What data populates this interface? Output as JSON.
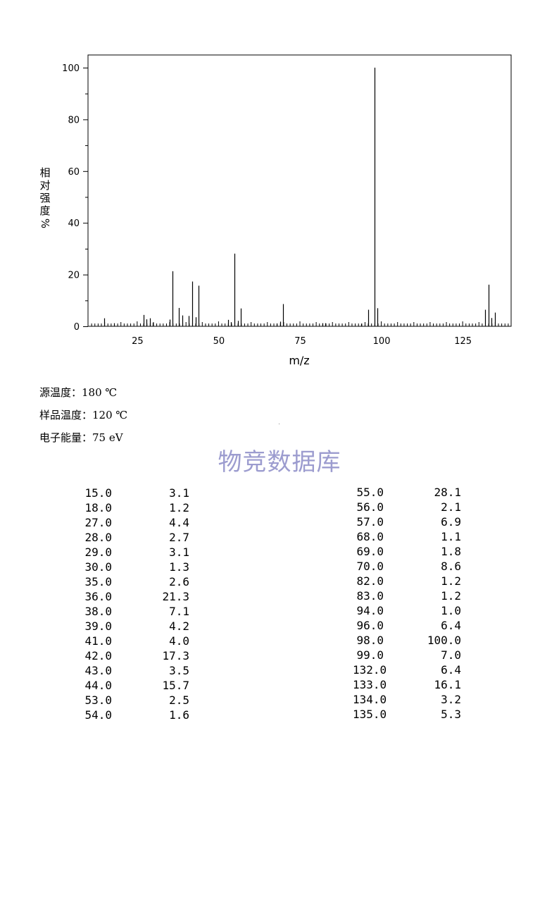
{
  "chart_data": {
    "type": "bar",
    "xlabel": "m/z",
    "ylabel": [
      "相",
      "对",
      "强",
      "度",
      "%"
    ],
    "xlim": [
      10,
      140
    ],
    "ylim": [
      0,
      105
    ],
    "xticks": [
      25,
      50,
      75,
      100,
      125
    ],
    "yticks": [
      0,
      20,
      40,
      60,
      80,
      100
    ],
    "peaks": [
      {
        "x": 15.0,
        "y": 3.1
      },
      {
        "x": 18.0,
        "y": 1.2
      },
      {
        "x": 27.0,
        "y": 4.4
      },
      {
        "x": 28.0,
        "y": 2.7
      },
      {
        "x": 29.0,
        "y": 3.1
      },
      {
        "x": 30.0,
        "y": 1.3
      },
      {
        "x": 35.0,
        "y": 2.6
      },
      {
        "x": 36.0,
        "y": 21.3
      },
      {
        "x": 38.0,
        "y": 7.1
      },
      {
        "x": 39.0,
        "y": 4.2
      },
      {
        "x": 41.0,
        "y": 4.0
      },
      {
        "x": 42.0,
        "y": 17.3
      },
      {
        "x": 43.0,
        "y": 3.5
      },
      {
        "x": 44.0,
        "y": 15.7
      },
      {
        "x": 53.0,
        "y": 2.5
      },
      {
        "x": 54.0,
        "y": 1.6
      },
      {
        "x": 55.0,
        "y": 28.1
      },
      {
        "x": 56.0,
        "y": 2.1
      },
      {
        "x": 57.0,
        "y": 6.9
      },
      {
        "x": 68.0,
        "y": 1.1
      },
      {
        "x": 69.0,
        "y": 1.8
      },
      {
        "x": 70.0,
        "y": 8.6
      },
      {
        "x": 82.0,
        "y": 1.2
      },
      {
        "x": 83.0,
        "y": 1.2
      },
      {
        "x": 94.0,
        "y": 1.0
      },
      {
        "x": 96.0,
        "y": 6.4
      },
      {
        "x": 98.0,
        "y": 100.0
      },
      {
        "x": 99.0,
        "y": 7.0
      },
      {
        "x": 132.0,
        "y": 6.4
      },
      {
        "x": 133.0,
        "y": 16.1
      },
      {
        "x": 134.0,
        "y": 3.2
      },
      {
        "x": 135.0,
        "y": 5.3
      }
    ]
  },
  "conditions": [
    {
      "label": "源温度：",
      "value": "180 ℃"
    },
    {
      "label": "样品温度：",
      "value": "120 ℃"
    },
    {
      "label": "电子能量：",
      "value": "75 eV"
    }
  ],
  "watermark": "物竞数据库",
  "table_left": [
    [
      "15.0",
      "3.1"
    ],
    [
      "18.0",
      "1.2"
    ],
    [
      "27.0",
      "4.4"
    ],
    [
      "28.0",
      "2.7"
    ],
    [
      "29.0",
      "3.1"
    ],
    [
      "30.0",
      "1.3"
    ],
    [
      "35.0",
      "2.6"
    ],
    [
      "36.0",
      "21.3"
    ],
    [
      "38.0",
      "7.1"
    ],
    [
      "39.0",
      "4.2"
    ],
    [
      "41.0",
      "4.0"
    ],
    [
      "42.0",
      "17.3"
    ],
    [
      "43.0",
      "3.5"
    ],
    [
      "44.0",
      "15.7"
    ],
    [
      "53.0",
      "2.5"
    ],
    [
      "54.0",
      "1.6"
    ]
  ],
  "table_right": [
    [
      "55.0",
      "28.1"
    ],
    [
      "56.0",
      "2.1"
    ],
    [
      "57.0",
      "6.9"
    ],
    [
      "68.0",
      "1.1"
    ],
    [
      "69.0",
      "1.8"
    ],
    [
      "70.0",
      "8.6"
    ],
    [
      "82.0",
      "1.2"
    ],
    [
      "83.0",
      "1.2"
    ],
    [
      "94.0",
      "1.0"
    ],
    [
      "96.0",
      "6.4"
    ],
    [
      "98.0",
      "100.0"
    ],
    [
      "99.0",
      "7.0"
    ],
    [
      "132.0",
      "6.4"
    ],
    [
      "133.0",
      "16.1"
    ],
    [
      "134.0",
      "3.2"
    ],
    [
      "135.0",
      "5.3"
    ]
  ]
}
